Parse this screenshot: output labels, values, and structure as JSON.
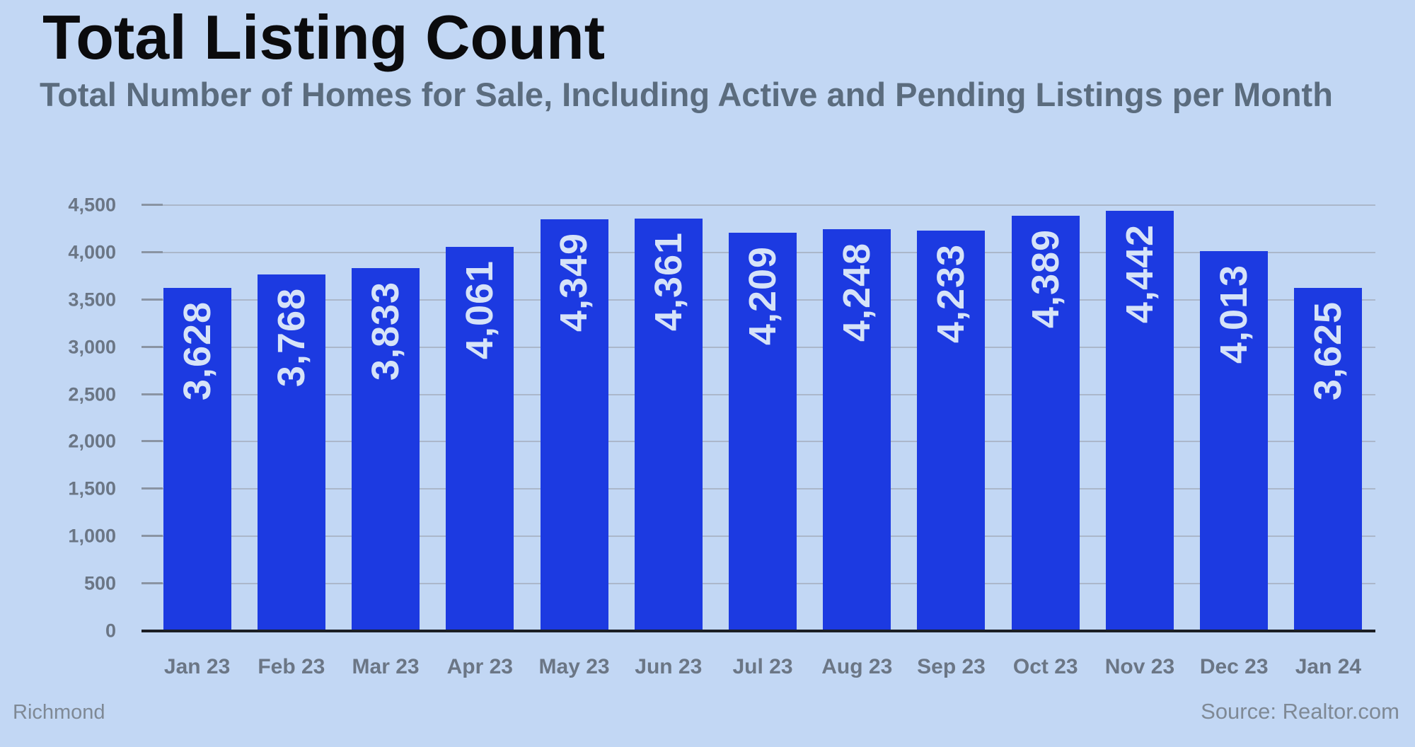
{
  "header": {
    "title": "Total Listing Count",
    "subtitle": "Total Number of Homes for Sale, Including Active and Pending Listings per Month"
  },
  "footer": {
    "left": "Richmond",
    "right": "Source: Realtor.com"
  },
  "chart_data": {
    "type": "bar",
    "title": "Total Listing Count",
    "subtitle": "Total Number of Homes for Sale, Including Active and Pending Listings per Month",
    "categories": [
      "Jan 23",
      "Feb 23",
      "Mar 23",
      "Apr 23",
      "May 23",
      "Jun 23",
      "Jul 23",
      "Aug 23",
      "Sep 23",
      "Oct 23",
      "Nov 23",
      "Dec 23",
      "Jan 24"
    ],
    "values": [
      3628,
      3768,
      3833,
      4061,
      4349,
      4361,
      4209,
      4248,
      4233,
      4389,
      4442,
      4013,
      3625
    ],
    "value_labels": [
      "3,628",
      "3,768",
      "3,833",
      "4,061",
      "4,349",
      "4,361",
      "4,209",
      "4,248",
      "4,233",
      "4,389",
      "4,442",
      "4,013",
      "3,625"
    ],
    "xlabel": "",
    "ylabel": "",
    "ylim": [
      0,
      4500
    ],
    "yticks": [
      0,
      500,
      1000,
      1500,
      2000,
      2500,
      3000,
      3500,
      4000,
      4500
    ],
    "ytick_labels": [
      "0",
      "500",
      "1,000",
      "1,500",
      "2,000",
      "2,500",
      "3,000",
      "3,500",
      "4,000",
      "4,500"
    ],
    "grid": true,
    "legend": false,
    "bar_label_rotation": -90,
    "colors": {
      "background": "#c2d7f4",
      "bar": "#1c3ae1",
      "bar_label": "#d6e3f8",
      "title": "#0b0b0d",
      "subtitle": "#5b6c7e",
      "axis_label": "#6b7685",
      "footer_text": "#7f8995",
      "gridline": "#a7b1c2",
      "tick_mark": "#8a94a3",
      "baseline": "#1b1e24"
    }
  }
}
